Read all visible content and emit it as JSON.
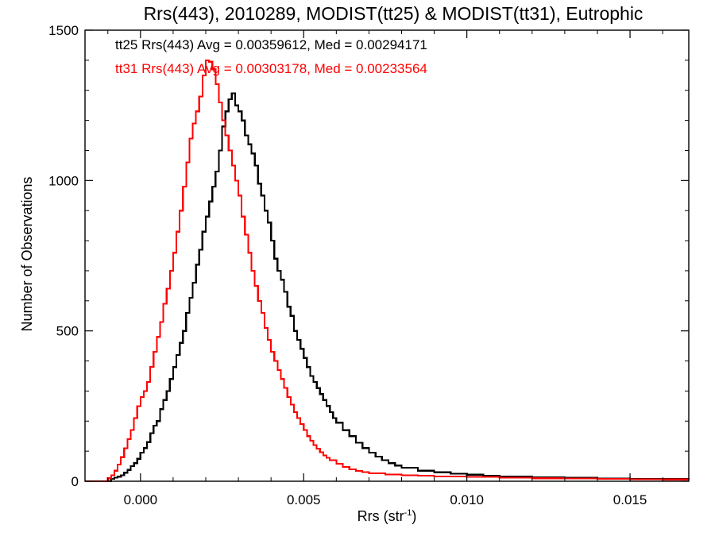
{
  "chart_data": {
    "type": "line",
    "title": "Rrs(443), 2010289, MODIST(tt25) & MODIST(tt31), Eutrophic",
    "xlabel_main": "Rrs (str",
    "xlabel_sup": "-1",
    "xlabel_close": ")",
    "ylabel": "Number of Observations",
    "xlim": [
      -0.0017,
      0.0168
    ],
    "ylim": [
      0,
      1500
    ],
    "xticks": [
      {
        "value": 0.0,
        "label": "0.000"
      },
      {
        "value": 0.005,
        "label": "0.005"
      },
      {
        "value": 0.01,
        "label": "0.010"
      },
      {
        "value": 0.015,
        "label": "0.015"
      }
    ],
    "yticks": [
      {
        "value": 0,
        "label": "0"
      },
      {
        "value": 500,
        "label": "500"
      },
      {
        "value": 1000,
        "label": "1000"
      },
      {
        "value": 1500,
        "label": "1500"
      }
    ],
    "grid": false,
    "legend_position": "top-left",
    "series": [
      {
        "name": "tt25",
        "color": "#000000",
        "annotation": "tt25 Rrs(443) Avg = 0.00359612, Med = 0.00294171",
        "points": [
          [
            -0.0017,
            0
          ],
          [
            -0.0011,
            0
          ],
          [
            -0.0009,
            8
          ],
          [
            -0.0008,
            12
          ],
          [
            -0.0007,
            15
          ],
          [
            -0.0006,
            20
          ],
          [
            -0.0005,
            28
          ],
          [
            -0.0004,
            38
          ],
          [
            -0.0003,
            50
          ],
          [
            -0.0002,
            60
          ],
          [
            -0.0001,
            75
          ],
          [
            0.0,
            95
          ],
          [
            0.0001,
            110
          ],
          [
            0.0002,
            130
          ],
          [
            0.0003,
            160
          ],
          [
            0.0004,
            185
          ],
          [
            0.0005,
            200
          ],
          [
            0.0006,
            240
          ],
          [
            0.0007,
            270
          ],
          [
            0.0008,
            300
          ],
          [
            0.0009,
            340
          ],
          [
            0.001,
            380
          ],
          [
            0.0011,
            420
          ],
          [
            0.0012,
            460
          ],
          [
            0.0013,
            500
          ],
          [
            0.0014,
            560
          ],
          [
            0.0015,
            610
          ],
          [
            0.0016,
            660
          ],
          [
            0.0017,
            720
          ],
          [
            0.0018,
            770
          ],
          [
            0.0019,
            830
          ],
          [
            0.002,
            880
          ],
          [
            0.0021,
            930
          ],
          [
            0.0022,
            980
          ],
          [
            0.0023,
            1030
          ],
          [
            0.0024,
            1100
          ],
          [
            0.0025,
            1180
          ],
          [
            0.0026,
            1230
          ],
          [
            0.0027,
            1270
          ],
          [
            0.0028,
            1290
          ],
          [
            0.0029,
            1250
          ],
          [
            0.003,
            1230
          ],
          [
            0.0031,
            1200
          ],
          [
            0.0032,
            1150
          ],
          [
            0.0033,
            1120
          ],
          [
            0.0034,
            1090
          ],
          [
            0.0035,
            1050
          ],
          [
            0.0036,
            990
          ],
          [
            0.0037,
            950
          ],
          [
            0.0038,
            900
          ],
          [
            0.0039,
            860
          ],
          [
            0.004,
            800
          ],
          [
            0.0041,
            740
          ],
          [
            0.0042,
            700
          ],
          [
            0.0043,
            670
          ],
          [
            0.0044,
            630
          ],
          [
            0.0045,
            580
          ],
          [
            0.0046,
            550
          ],
          [
            0.0047,
            500
          ],
          [
            0.0048,
            470
          ],
          [
            0.0049,
            440
          ],
          [
            0.005,
            410
          ],
          [
            0.0051,
            380
          ],
          [
            0.0052,
            350
          ],
          [
            0.0053,
            330
          ],
          [
            0.0054,
            310
          ],
          [
            0.0055,
            290
          ],
          [
            0.0056,
            270
          ],
          [
            0.0057,
            250
          ],
          [
            0.0058,
            230
          ],
          [
            0.0059,
            210
          ],
          [
            0.006,
            195
          ],
          [
            0.0062,
            170
          ],
          [
            0.0064,
            150
          ],
          [
            0.0066,
            128
          ],
          [
            0.0068,
            110
          ],
          [
            0.007,
            95
          ],
          [
            0.0072,
            82
          ],
          [
            0.0074,
            70
          ],
          [
            0.0076,
            60
          ],
          [
            0.0078,
            52
          ],
          [
            0.008,
            45
          ],
          [
            0.0085,
            35
          ],
          [
            0.009,
            30
          ],
          [
            0.0095,
            25
          ],
          [
            0.01,
            22
          ],
          [
            0.0105,
            18
          ],
          [
            0.011,
            16
          ],
          [
            0.012,
            13
          ],
          [
            0.013,
            11
          ],
          [
            0.014,
            9
          ],
          [
            0.015,
            8
          ],
          [
            0.016,
            7
          ],
          [
            0.0168,
            6
          ]
        ]
      },
      {
        "name": "tt31",
        "color": "#ff0000",
        "annotation": "tt31 Rrs(443) Avg = 0.00303178, Med = 0.00233564",
        "points": [
          [
            -0.0017,
            0
          ],
          [
            -0.0011,
            0
          ],
          [
            -0.001,
            10
          ],
          [
            -0.0009,
            20
          ],
          [
            -0.0008,
            35
          ],
          [
            -0.0007,
            55
          ],
          [
            -0.0006,
            80
          ],
          [
            -0.0005,
            110
          ],
          [
            -0.0004,
            140
          ],
          [
            -0.0003,
            170
          ],
          [
            -0.0002,
            210
          ],
          [
            -0.0001,
            250
          ],
          [
            0.0,
            280
          ],
          [
            0.0001,
            300
          ],
          [
            0.0002,
            330
          ],
          [
            0.0003,
            380
          ],
          [
            0.0004,
            430
          ],
          [
            0.0005,
            480
          ],
          [
            0.0006,
            530
          ],
          [
            0.0007,
            590
          ],
          [
            0.0008,
            640
          ],
          [
            0.0009,
            700
          ],
          [
            0.001,
            760
          ],
          [
            0.0011,
            830
          ],
          [
            0.0012,
            900
          ],
          [
            0.0013,
            980
          ],
          [
            0.0014,
            1060
          ],
          [
            0.0015,
            1140
          ],
          [
            0.0016,
            1190
          ],
          [
            0.0017,
            1230
          ],
          [
            0.0018,
            1280
          ],
          [
            0.0019,
            1350
          ],
          [
            0.002,
            1400
          ],
          [
            0.0021,
            1395
          ],
          [
            0.0022,
            1370
          ],
          [
            0.0023,
            1320
          ],
          [
            0.0024,
            1260
          ],
          [
            0.0025,
            1200
          ],
          [
            0.0026,
            1150
          ],
          [
            0.0027,
            1100
          ],
          [
            0.0028,
            1050
          ],
          [
            0.0029,
            1000
          ],
          [
            0.003,
            950
          ],
          [
            0.0031,
            880
          ],
          [
            0.0032,
            820
          ],
          [
            0.0033,
            760
          ],
          [
            0.0034,
            700
          ],
          [
            0.0035,
            650
          ],
          [
            0.0036,
            600
          ],
          [
            0.0037,
            560
          ],
          [
            0.0038,
            510
          ],
          [
            0.0039,
            470
          ],
          [
            0.004,
            430
          ],
          [
            0.0041,
            400
          ],
          [
            0.0042,
            370
          ],
          [
            0.0043,
            340
          ],
          [
            0.0044,
            310
          ],
          [
            0.0045,
            280
          ],
          [
            0.0046,
            255
          ],
          [
            0.0047,
            230
          ],
          [
            0.0048,
            210
          ],
          [
            0.0049,
            190
          ],
          [
            0.005,
            170
          ],
          [
            0.0051,
            150
          ],
          [
            0.0052,
            135
          ],
          [
            0.0053,
            120
          ],
          [
            0.0054,
            108
          ],
          [
            0.0055,
            96
          ],
          [
            0.0056,
            86
          ],
          [
            0.0057,
            78
          ],
          [
            0.0058,
            70
          ],
          [
            0.006,
            58
          ],
          [
            0.0062,
            48
          ],
          [
            0.0064,
            40
          ],
          [
            0.0066,
            34
          ],
          [
            0.0068,
            30
          ],
          [
            0.007,
            26
          ],
          [
            0.0075,
            22
          ],
          [
            0.008,
            20
          ],
          [
            0.0085,
            18
          ],
          [
            0.009,
            16
          ],
          [
            0.01,
            14
          ],
          [
            0.011,
            12
          ],
          [
            0.012,
            10
          ],
          [
            0.013,
            9
          ],
          [
            0.014,
            8
          ],
          [
            0.015,
            7
          ],
          [
            0.016,
            6
          ],
          [
            0.0168,
            5
          ]
        ]
      }
    ]
  }
}
